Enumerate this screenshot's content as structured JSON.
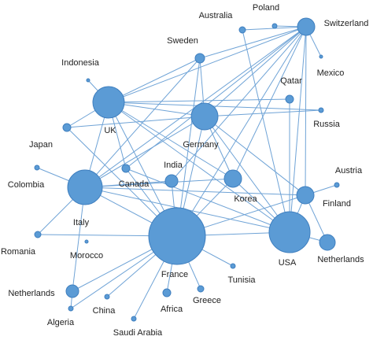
{
  "nodes": [
    {
      "label": "Australia"
    },
    {
      "label": "Poland"
    },
    {
      "label": "Switzerland"
    },
    {
      "label": "Mexico"
    },
    {
      "label": "Sweden"
    },
    {
      "label": "Indonesia"
    },
    {
      "label": "UK"
    },
    {
      "label": "Germany"
    },
    {
      "label": "Qatar"
    },
    {
      "label": "Russia"
    },
    {
      "label": "Japan"
    },
    {
      "label": "Colombia"
    },
    {
      "label": "Canada"
    },
    {
      "label": "India"
    },
    {
      "label": "Korea"
    },
    {
      "label": "Austria"
    },
    {
      "label": "Finland"
    },
    {
      "label": "Italy"
    },
    {
      "label": "Romania"
    },
    {
      "label": "Morocco"
    },
    {
      "label": "France"
    },
    {
      "label": "USA"
    },
    {
      "label": "Netherlands"
    },
    {
      "label": "Tunisia"
    },
    {
      "label": "Greece"
    },
    {
      "label": "Africa"
    },
    {
      "label": "China"
    },
    {
      "label": "Netherlands"
    },
    {
      "label": "Algeria"
    },
    {
      "label": "Saudi Arabia"
    }
  ]
}
